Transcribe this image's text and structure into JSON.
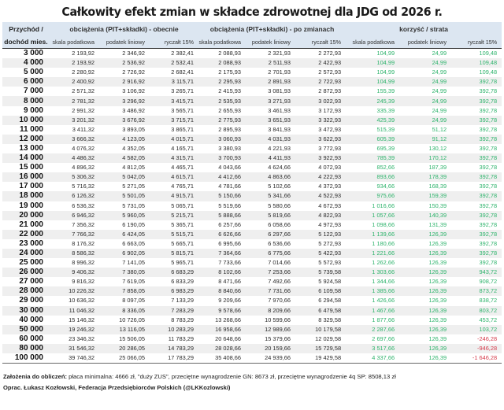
{
  "title": "Całkowity efekt zmian w składce zdrowotnej dla JDG od 2026 r.",
  "header": {
    "col0_line1": "Przychód /",
    "col0_line2": "dochód mies.",
    "groups": [
      "obciążenia (PIT+składki) - obecnie",
      "obciążenia (PIT+składki) - po zmianach",
      "korzyść / strata"
    ],
    "subcols": [
      "skala podatkowa",
      "podatek liniowy",
      "ryczałt 15%",
      "skala podatkowa",
      "podatek liniowy",
      "ryczałt 15%",
      "skala podatkowa",
      "podatek liniowy",
      "ryczałt 15%"
    ]
  },
  "colors": {
    "header_bg": "#dce6f1",
    "positive": "#2db36b",
    "negative": "#d63a4a",
    "stripe": "#efefef"
  },
  "rows": [
    [
      "3 000",
      "2 193,92",
      "2 346,92",
      "2 382,41",
      "2 088,93",
      "2 321,93",
      "2 272,93",
      "104,99",
      "24,99",
      "109,48"
    ],
    [
      "4 000",
      "2 193,92",
      "2 536,92",
      "2 532,41",
      "2 088,93",
      "2 511,93",
      "2 422,93",
      "104,99",
      "24,99",
      "109,48"
    ],
    [
      "5 000",
      "2 280,92",
      "2 726,92",
      "2 682,41",
      "2 175,93",
      "2 701,93",
      "2 572,93",
      "104,99",
      "24,99",
      "109,48"
    ],
    [
      "6 000",
      "2 400,92",
      "2 916,92",
      "3 115,71",
      "2 295,93",
      "2 891,93",
      "2 722,93",
      "104,99",
      "24,99",
      "392,78"
    ],
    [
      "7 000",
      "2 571,32",
      "3 106,92",
      "3 265,71",
      "2 415,93",
      "3 081,93",
      "2 872,93",
      "155,39",
      "24,99",
      "392,78"
    ],
    [
      "8 000",
      "2 781,32",
      "3 296,92",
      "3 415,71",
      "2 535,93",
      "3 271,93",
      "3 022,93",
      "245,39",
      "24,99",
      "392,78"
    ],
    [
      "9 000",
      "2 991,32",
      "3 486,92",
      "3 565,71",
      "2 655,93",
      "3 461,93",
      "3 172,93",
      "335,39",
      "24,99",
      "392,78"
    ],
    [
      "10 000",
      "3 201,32",
      "3 676,92",
      "3 715,71",
      "2 775,93",
      "3 651,93",
      "3 322,93",
      "425,39",
      "24,99",
      "392,78"
    ],
    [
      "11 000",
      "3 411,32",
      "3 893,05",
      "3 865,71",
      "2 895,93",
      "3 841,93",
      "3 472,93",
      "515,39",
      "51,12",
      "392,78"
    ],
    [
      "12 000",
      "3 666,32",
      "4 123,05",
      "4 015,71",
      "3 060,93",
      "4 031,93",
      "3 622,93",
      "605,39",
      "91,12",
      "392,78"
    ],
    [
      "13 000",
      "4 076,32",
      "4 352,05",
      "4 165,71",
      "3 380,93",
      "4 221,93",
      "3 772,93",
      "695,39",
      "130,12",
      "392,78"
    ],
    [
      "14 000",
      "4 486,32",
      "4 582,05",
      "4 315,71",
      "3 700,93",
      "4 411,93",
      "3 922,93",
      "785,39",
      "170,12",
      "392,78"
    ],
    [
      "15 000",
      "4 896,32",
      "4 812,05",
      "4 465,71",
      "4 043,66",
      "4 624,66",
      "4 072,93",
      "852,66",
      "187,39",
      "392,78"
    ],
    [
      "16 000",
      "5 306,32",
      "5 042,05",
      "4 615,71",
      "4 412,66",
      "4 863,66",
      "4 222,93",
      "893,66",
      "178,39",
      "392,78"
    ],
    [
      "17 000",
      "5 716,32",
      "5 271,05",
      "4 765,71",
      "4 781,66",
      "5 102,66",
      "4 372,93",
      "934,66",
      "168,39",
      "392,78"
    ],
    [
      "18 000",
      "6 126,32",
      "5 501,05",
      "4 915,71",
      "5 150,66",
      "5 341,66",
      "4 522,93",
      "975,66",
      "159,39",
      "392,78"
    ],
    [
      "19 000",
      "6 536,32",
      "5 731,05",
      "5 065,71",
      "5 519,66",
      "5 580,66",
      "4 672,93",
      "1 016,66",
      "150,39",
      "392,78"
    ],
    [
      "20 000",
      "6 946,32",
      "5 960,05",
      "5 215,71",
      "5 888,66",
      "5 819,66",
      "4 822,93",
      "1 057,66",
      "140,39",
      "392,78"
    ],
    [
      "21 000",
      "7 356,32",
      "6 190,05",
      "5 365,71",
      "6 257,66",
      "6 058,66",
      "4 972,93",
      "1 098,66",
      "131,39",
      "392,78"
    ],
    [
      "22 000",
      "7 766,32",
      "6 424,05",
      "5 515,71",
      "6 626,66",
      "6 297,66",
      "5 122,93",
      "1 139,66",
      "126,39",
      "392,78"
    ],
    [
      "23 000",
      "8 176,32",
      "6 663,05",
      "5 665,71",
      "6 995,66",
      "6 536,66",
      "5 272,93",
      "1 180,66",
      "126,39",
      "392,78"
    ],
    [
      "24 000",
      "8 586,32",
      "6 902,05",
      "5 815,71",
      "7 364,66",
      "6 775,66",
      "5 422,93",
      "1 221,66",
      "126,39",
      "392,78"
    ],
    [
      "25 000",
      "8 996,32",
      "7 141,05",
      "5 965,71",
      "7 733,66",
      "7 014,66",
      "5 572,93",
      "1 262,66",
      "126,39",
      "392,78"
    ],
    [
      "26 000",
      "9 406,32",
      "7 380,05",
      "6 683,29",
      "8 102,66",
      "7 253,66",
      "5 739,58",
      "1 303,66",
      "126,39",
      "943,72"
    ],
    [
      "27 000",
      "9 816,32",
      "7 619,05",
      "6 833,29",
      "8 471,66",
      "7 492,66",
      "5 924,58",
      "1 344,66",
      "126,39",
      "908,72"
    ],
    [
      "28 000",
      "10 226,32",
      "7 858,05",
      "6 983,29",
      "8 840,66",
      "7 731,66",
      "6 109,58",
      "1 385,66",
      "126,39",
      "873,72"
    ],
    [
      "29 000",
      "10 636,32",
      "8 097,05",
      "7 133,29",
      "9 209,66",
      "7 970,66",
      "6 294,58",
      "1 426,66",
      "126,39",
      "838,72"
    ],
    [
      "30 000",
      "11 046,32",
      "8 336,05",
      "7 283,29",
      "9 578,66",
      "8 209,66",
      "6 479,58",
      "1 467,66",
      "126,39",
      "803,72"
    ],
    [
      "40 000",
      "15 146,32",
      "10 726,05",
      "8 783,29",
      "13 268,66",
      "10 599,66",
      "8 329,58",
      "1 877,66",
      "126,39",
      "453,72"
    ],
    [
      "50 000",
      "19 246,32",
      "13 116,05",
      "10 283,29",
      "16 958,66",
      "12 989,66",
      "10 179,58",
      "2 287,66",
      "126,39",
      "103,72"
    ],
    [
      "60 000",
      "23 346,32",
      "15 506,05",
      "11 783,29",
      "20 648,66",
      "15 379,66",
      "12 029,58",
      "2 697,66",
      "126,39",
      "-246,28"
    ],
    [
      "80 000",
      "31 546,32",
      "20 286,05",
      "14 783,29",
      "28 028,66",
      "20 159,66",
      "15 729,58",
      "3 517,66",
      "126,39",
      "-946,28"
    ],
    [
      "100 000",
      "39 746,32",
      "25 066,05",
      "17 783,29",
      "35 408,66",
      "24 939,66",
      "19 429,58",
      "4 337,66",
      "126,39",
      "-1 646,28"
    ]
  ],
  "footer": {
    "assumptions_label": "Założenia do obliczeń:",
    "assumptions_text": " płaca minimalna: 4666 zł, \"duży ZUS\", przeciętne wynagrodzenie GN: 8673 zł, przeciętne wynagrodzenie 4q SP: 8508,13 zł",
    "author": "Oprac. Łukasz Kozłowski, Federacja Przedsiębiorców Polskich (@LKKozlowski)"
  }
}
